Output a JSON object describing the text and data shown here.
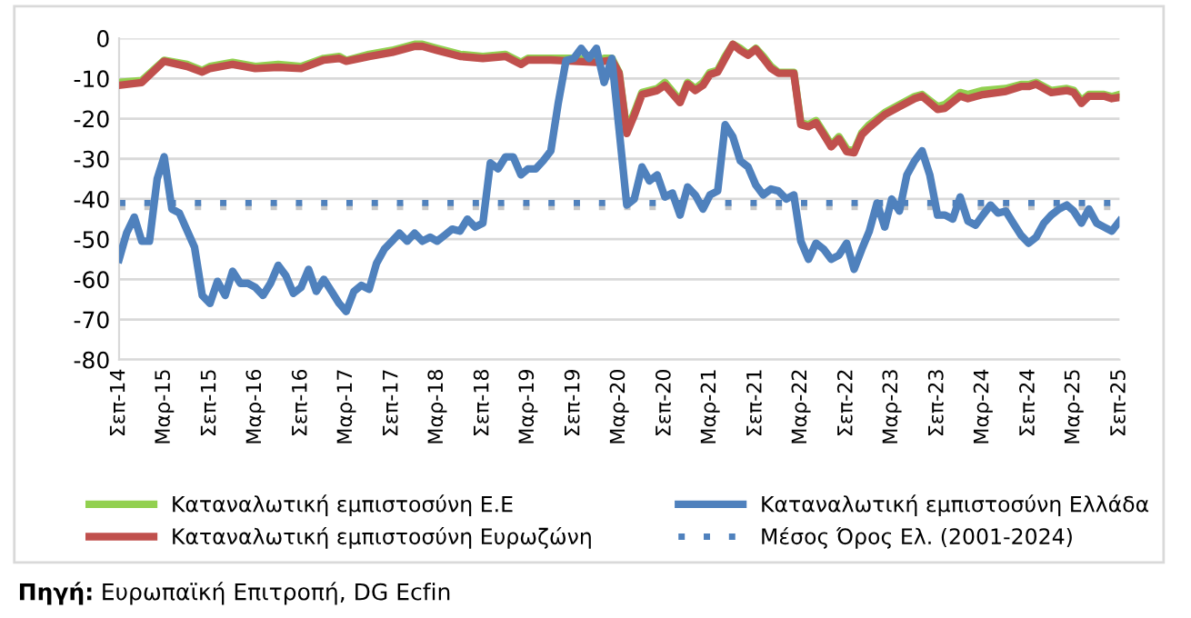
{
  "chart_data": {
    "type": "line",
    "x": [
      "2014-09",
      "2014-12",
      "2015-03",
      "2015-06",
      "2015-08",
      "2015-09",
      "2015-12",
      "2016-03",
      "2016-06",
      "2016-09",
      "2016-12",
      "2017-02",
      "2017-03",
      "2017-06",
      "2017-09",
      "2017-12",
      "2018-01",
      "2018-03",
      "2018-06",
      "2018-09",
      "2018-12",
      "2019-02",
      "2019-03",
      "2019-06",
      "2019-09",
      "2019-12",
      "2020-01",
      "2020-02",
      "2020-03",
      "2020-04",
      "2020-05",
      "2020-06",
      "2020-08",
      "2020-09",
      "2020-11",
      "2020-12",
      "2021-01",
      "2021-02",
      "2021-03",
      "2021-04",
      "2021-05",
      "2021-06",
      "2021-07",
      "2021-08",
      "2021-09",
      "2021-10",
      "2021-11",
      "2021-12",
      "2022-02",
      "2022-03",
      "2022-04",
      "2022-05",
      "2022-06",
      "2022-07",
      "2022-08",
      "2022-09",
      "2022-10",
      "2022-11",
      "2022-12",
      "2023-02",
      "2023-04",
      "2023-06",
      "2023-07",
      "2023-09",
      "2023-10",
      "2023-12",
      "2024-01",
      "2024-03",
      "2024-06",
      "2024-08",
      "2024-09",
      "2024-10",
      "2024-12",
      "2025-02",
      "2025-03",
      "2025-04",
      "2025-05",
      "2025-07",
      "2025-08",
      "2025-09"
    ],
    "series": [
      {
        "name": "Καταναλωτική εμπιστοσύνη Ε.Ε",
        "color": "#92d050",
        "values": [
          -11,
          -10.5,
          -5.5,
          -6.5,
          -8,
          -7,
          -6,
          -7,
          -6.5,
          -7,
          -5,
          -4.5,
          -5.5,
          -4,
          -3,
          -1.5,
          -1.5,
          -2.5,
          -4,
          -4.5,
          -4,
          -6,
          -5,
          -5,
          -5,
          -5.5,
          -5,
          -5,
          -8.5,
          -23,
          -18.5,
          -13.5,
          -12.5,
          -11,
          -15.5,
          -11,
          -12.5,
          -11,
          -8.5,
          -8,
          -4.5,
          -1.5,
          -2.5,
          -4,
          -2.5,
          -4.5,
          -7,
          -8.5,
          -8.5,
          -21,
          -21.5,
          -20.5,
          -23.5,
          -26.5,
          -24.5,
          -27.5,
          -28,
          -23.5,
          -21.5,
          -18.5,
          -16.5,
          -14.5,
          -14,
          -17,
          -16.5,
          -13.5,
          -14,
          -13,
          -12.5,
          -11.5,
          -11.5,
          -11,
          -13,
          -12.5,
          -13,
          -15.5,
          -14,
          -14,
          -14.5,
          -14
        ]
      },
      {
        "name": "Καταναλωτική εμπιστοσύνη Ευρωζώνη",
        "color": "#c0504d",
        "values": [
          -11.7,
          -11,
          -5.7,
          -7,
          -8.4,
          -7.5,
          -6.5,
          -7.5,
          -7.2,
          -7.5,
          -5.4,
          -5,
          -5.7,
          -4.5,
          -3.5,
          -2,
          -2,
          -3,
          -4.5,
          -5,
          -4.5,
          -6.5,
          -5.4,
          -5.4,
          -5.7,
          -6,
          -5.7,
          -5.4,
          -8.7,
          -23.7,
          -19.2,
          -14,
          -13,
          -11.7,
          -16,
          -11.4,
          -13,
          -11.7,
          -9,
          -8.4,
          -5,
          -1.5,
          -3,
          -4.2,
          -2.7,
          -5,
          -7.5,
          -8.7,
          -8.7,
          -21.5,
          -22,
          -21,
          -24,
          -27,
          -25,
          -28.2,
          -28.5,
          -24,
          -22.2,
          -19,
          -17,
          -15,
          -14.4,
          -17.7,
          -17.4,
          -14.4,
          -15,
          -14,
          -13.2,
          -12,
          -12,
          -11.4,
          -13.5,
          -13,
          -13.5,
          -16.2,
          -14.4,
          -14.4,
          -15,
          -14.7
        ]
      },
      {
        "name": "Καταναλωτική εμπιστοσύνη Ελλάδα",
        "color": "#4f81bd",
        "x": [
          "2014-09",
          "2014-10",
          "2014-11",
          "2014-12",
          "2015-01",
          "2015-02",
          "2015-03",
          "2015-04",
          "2015-05",
          "2015-07",
          "2015-08",
          "2015-09",
          "2015-10",
          "2015-11",
          "2015-12",
          "2016-01",
          "2016-02",
          "2016-03",
          "2016-04",
          "2016-05",
          "2016-06",
          "2016-07",
          "2016-08",
          "2016-09",
          "2016-10",
          "2016-11",
          "2016-12",
          "2017-01",
          "2017-02",
          "2017-03",
          "2017-04",
          "2017-05",
          "2017-06",
          "2017-07",
          "2017-08",
          "2017-09",
          "2017-10",
          "2017-11",
          "2017-12",
          "2018-01",
          "2018-02",
          "2018-03",
          "2018-04",
          "2018-05",
          "2018-06",
          "2018-07",
          "2018-08",
          "2018-09",
          "2018-10",
          "2018-11",
          "2018-12",
          "2019-01",
          "2019-02",
          "2019-03",
          "2019-04",
          "2019-05",
          "2019-06",
          "2019-07",
          "2019-08",
          "2019-09",
          "2019-10",
          "2019-11",
          "2019-12",
          "2020-01",
          "2020-02",
          "2020-04",
          "2020-05",
          "2020-06",
          "2020-07",
          "2020-08",
          "2020-09",
          "2020-10",
          "2020-11",
          "2020-12",
          "2021-01",
          "2021-02",
          "2021-03",
          "2021-04",
          "2021-05",
          "2021-06",
          "2021-07",
          "2021-08",
          "2021-09",
          "2021-10",
          "2021-11",
          "2021-12",
          "2022-01",
          "2022-02",
          "2022-03",
          "2022-04",
          "2022-05",
          "2022-06",
          "2022-07",
          "2022-08",
          "2022-09",
          "2022-10",
          "2022-11",
          "2022-12",
          "2023-01",
          "2023-02",
          "2023-03",
          "2023-04",
          "2023-05",
          "2023-06",
          "2023-07",
          "2023-08",
          "2023-09",
          "2023-10",
          "2023-11",
          "2023-12",
          "2024-01",
          "2024-02",
          "2024-03",
          "2024-04",
          "2024-05",
          "2024-06",
          "2024-07",
          "2024-08",
          "2024-09",
          "2024-10",
          "2024-11",
          "2024-12",
          "2025-01",
          "2025-02",
          "2025-03",
          "2025-04",
          "2025-05",
          "2025-06",
          "2025-07",
          "2025-08",
          "2025-09"
        ],
        "values": [
          -55,
          -48.5,
          -44.5,
          -50.5,
          -50.5,
          -35,
          -29.5,
          -42.5,
          -43.5,
          -52,
          -64,
          -66,
          -60.5,
          -64,
          -58,
          -61,
          -61,
          -62,
          -64,
          -61,
          -56.5,
          -59,
          -63.5,
          -62,
          -57.5,
          -63,
          -60,
          -63,
          -66,
          -68,
          -63,
          -61.5,
          -62.5,
          -56,
          -52.5,
          -50.5,
          -48.5,
          -50.5,
          -48.5,
          -50.5,
          -49.5,
          -50.5,
          -49,
          -47.5,
          -48,
          -45,
          -47,
          -46,
          -31,
          -32.5,
          -29.5,
          -29.5,
          -34,
          -32.5,
          -32.5,
          -30.5,
          -28,
          -16,
          -5.5,
          -5,
          -2.5,
          -5,
          -2.5,
          -11,
          -5,
          -41.5,
          -40,
          -32,
          -35.5,
          -34,
          -39.5,
          -38.5,
          -44,
          -37,
          -39,
          -42.5,
          -39,
          -38,
          -21.5,
          -24.5,
          -30.5,
          -32,
          -36.5,
          -39,
          -37.5,
          -38,
          -40,
          -39,
          -50.5,
          -55,
          -51,
          -52.5,
          -55,
          -54,
          -51,
          -57.5,
          -52.5,
          -48,
          -41,
          -47,
          -40,
          -43,
          -34,
          -30.5,
          -28,
          -34,
          -44,
          -44,
          -45,
          -39.5,
          -45.5,
          -46.5,
          -44,
          -41.5,
          -43.5,
          -43,
          -46,
          -49,
          -51,
          -49.5,
          -46,
          -44,
          -42.5,
          -41.5,
          -43,
          -46,
          -42.5,
          -46,
          -47,
          -48,
          -45.5
        ]
      }
    ],
    "xlim": [
      "2014-09",
      "2025-09"
    ],
    "xticks": [
      {
        "value": "2014-09",
        "label": "Σεπ-14"
      },
      {
        "value": "2015-03",
        "label": "Μαρ-15"
      },
      {
        "value": "2015-09",
        "label": "Σεπ-15"
      },
      {
        "value": "2016-03",
        "label": "Μαρ-16"
      },
      {
        "value": "2016-09",
        "label": "Σεπ-16"
      },
      {
        "value": "2017-03",
        "label": "Μαρ-17"
      },
      {
        "value": "2017-09",
        "label": "Σεπ-17"
      },
      {
        "value": "2018-03",
        "label": "Μαρ-18"
      },
      {
        "value": "2018-09",
        "label": "Σεπ-18"
      },
      {
        "value": "2019-03",
        "label": "Μαρ-19"
      },
      {
        "value": "2019-09",
        "label": "Σεπ-19"
      },
      {
        "value": "2020-03",
        "label": "Μαρ-20"
      },
      {
        "value": "2020-09",
        "label": "Σεπ-20"
      },
      {
        "value": "2021-03",
        "label": "Μαρ-21"
      },
      {
        "value": "2021-09",
        "label": "Σεπ-21"
      },
      {
        "value": "2022-03",
        "label": "Μαρ-22"
      },
      {
        "value": "2022-09",
        "label": "Σεπ-22"
      },
      {
        "value": "2023-03",
        "label": "Μαρ-23"
      },
      {
        "value": "2023-09",
        "label": "Σεπ-23"
      },
      {
        "value": "2024-03",
        "label": "Μαρ-24"
      },
      {
        "value": "2024-09",
        "label": "Σεπ-24"
      },
      {
        "value": "2025-03",
        "label": "Μαρ-25"
      },
      {
        "value": "2025-09",
        "label": "Σεπ-25"
      }
    ],
    "ylim": [
      -80,
      0
    ],
    "yticks": [
      -80,
      -70,
      -60,
      -50,
      -40,
      -30,
      -20,
      -10,
      0
    ],
    "ref_lines": [
      {
        "axis": "y",
        "value": -42,
        "color": "#c8c8c8",
        "line_style": "dotted"
      },
      {
        "axis": "y",
        "value": -41,
        "label": "Μέσος Όρος Ελ. (2001-2024)",
        "color": "#4f81bd",
        "line_style": "dotted"
      }
    ],
    "grid": "y",
    "legend": "bottom",
    "marker": "none",
    "line_style": "solid",
    "annotations": [
      "Πηγή: Ευρωπαϊκή Επιτροπή, DG Ecfin"
    ]
  }
}
